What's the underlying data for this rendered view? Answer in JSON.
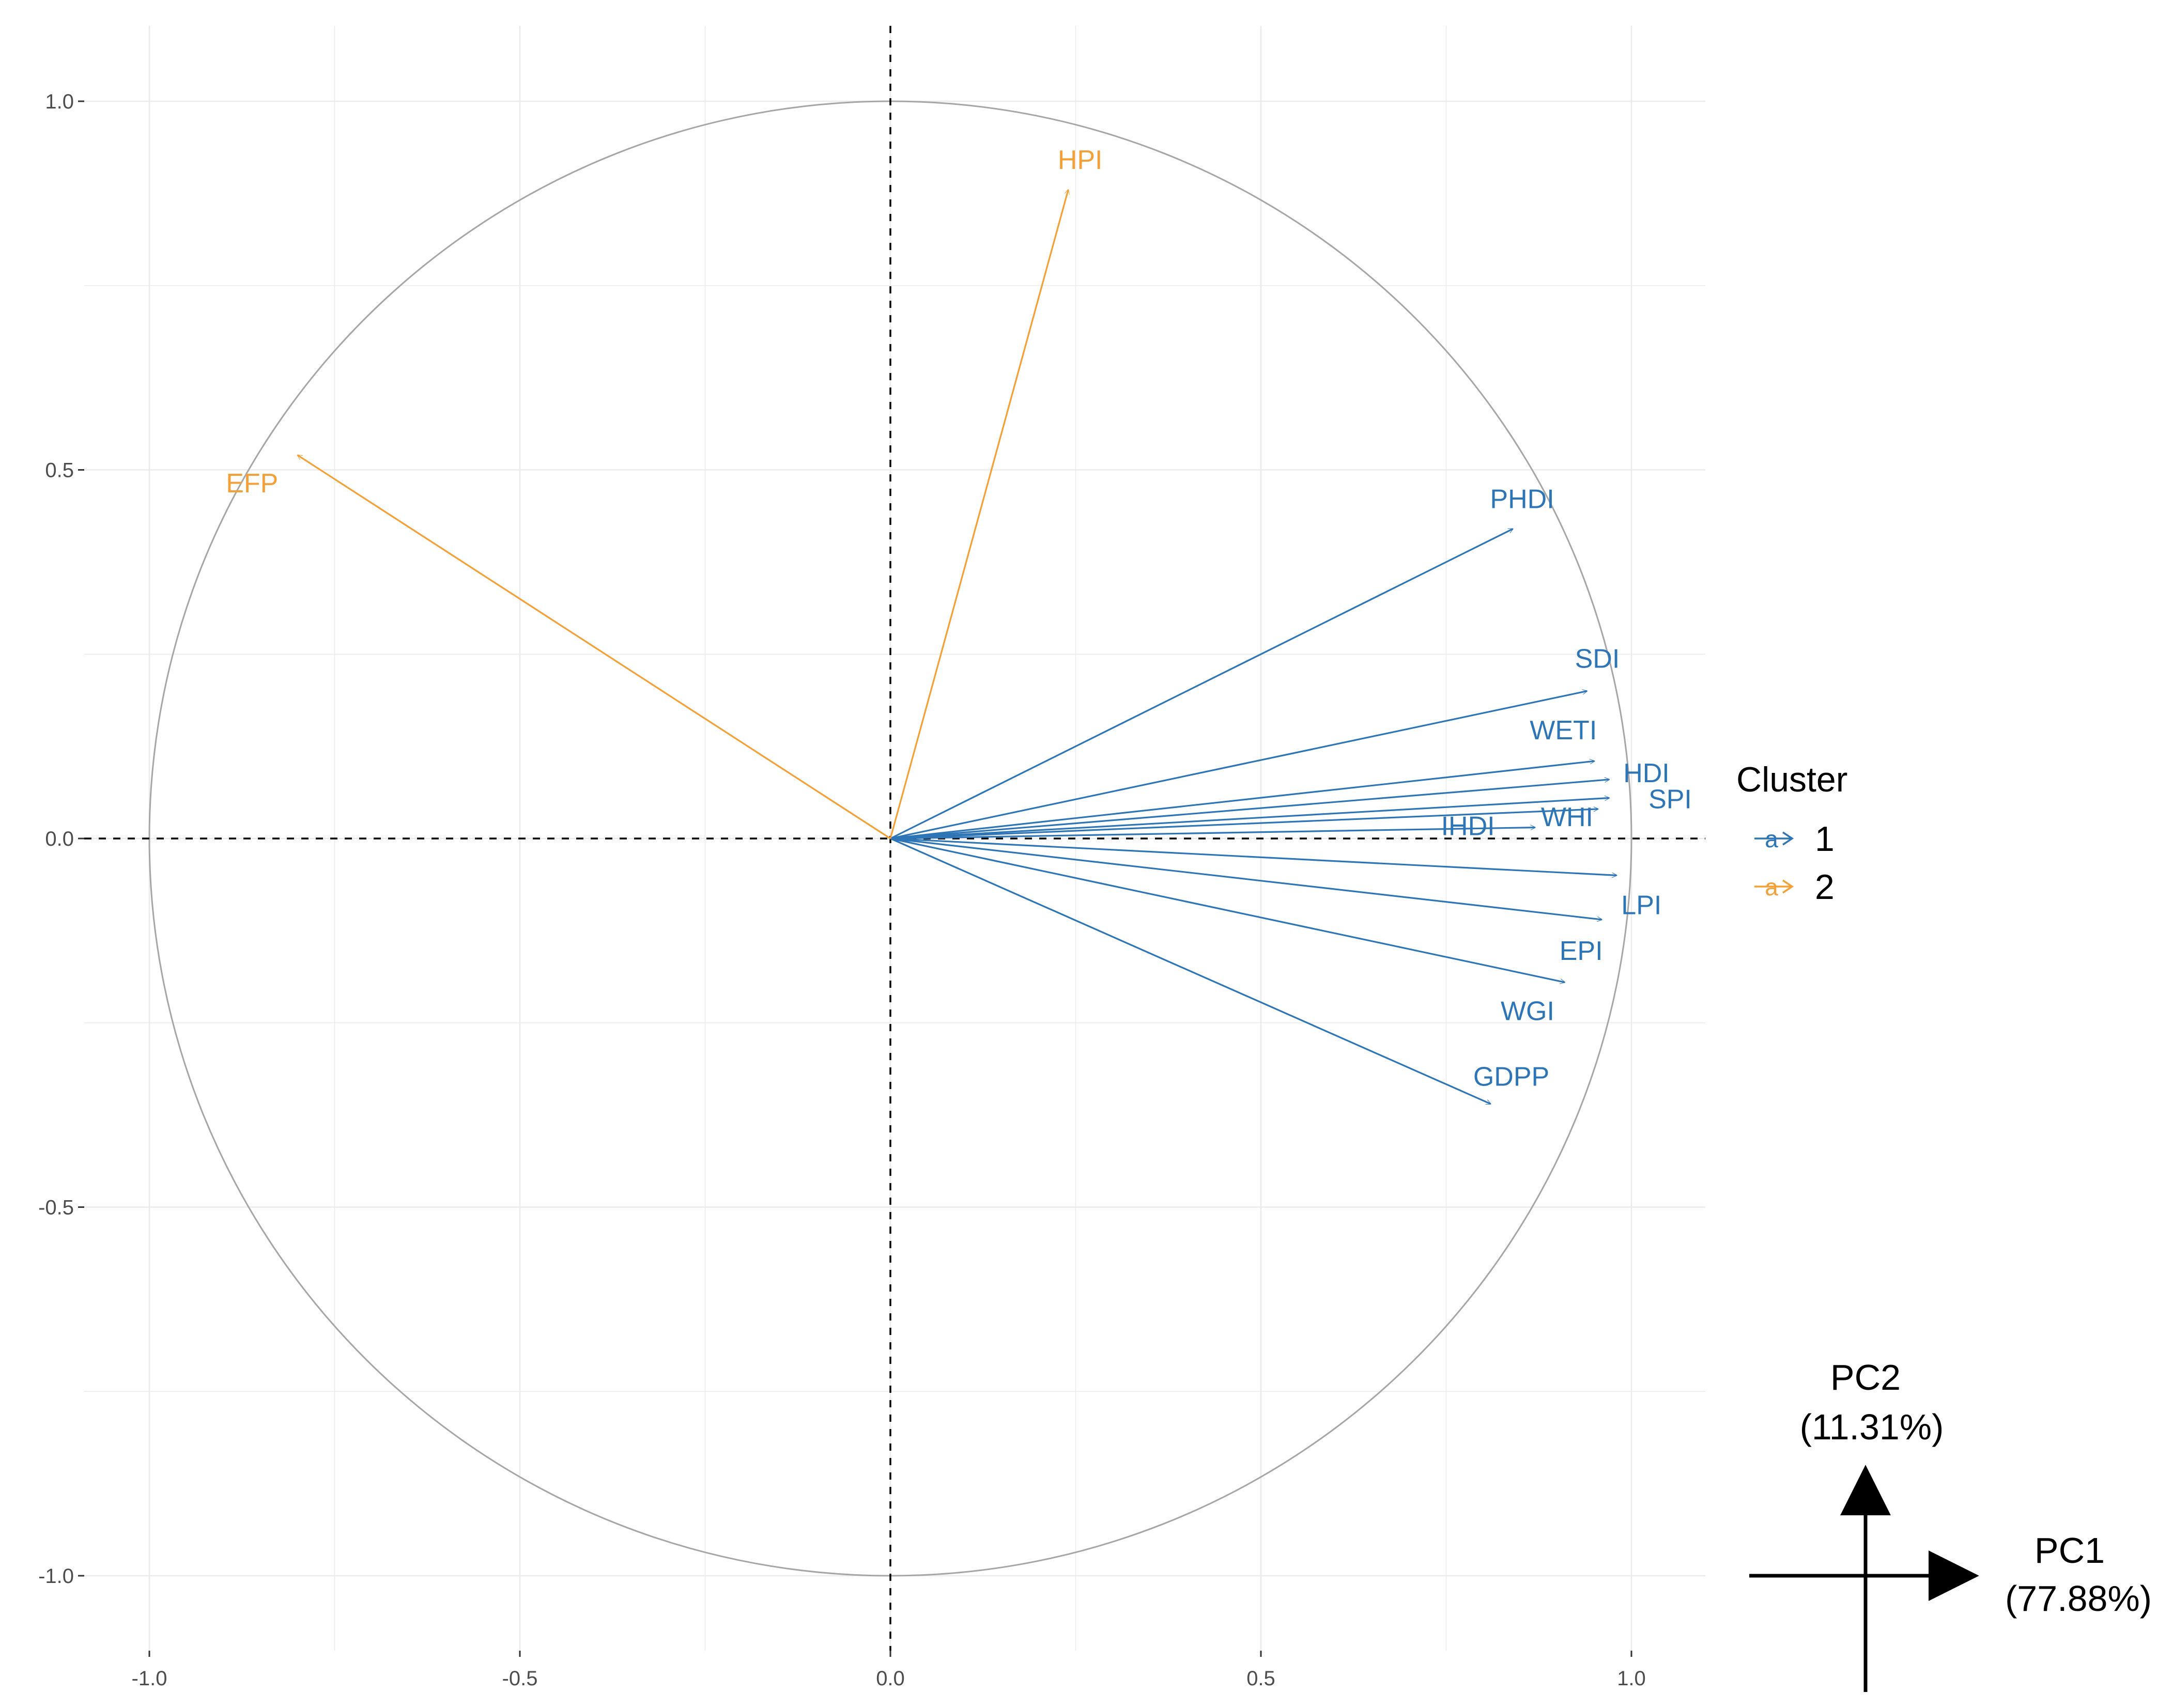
{
  "chart_data": {
    "type": "pca-correlation-circle",
    "xlim": [
      -1.0,
      1.0
    ],
    "ylim": [
      -1.0,
      1.0
    ],
    "x_ticks": [
      -1.0,
      -0.5,
      0.0,
      0.5,
      1.0
    ],
    "y_ticks": [
      -1.0,
      -0.5,
      0.0,
      0.5,
      1.0
    ],
    "x_tick_labels": [
      "-1.0",
      "-0.5",
      "0.0",
      "0.5",
      "1.0"
    ],
    "y_tick_labels": [
      "-1.0",
      "-0.5",
      "0.0",
      "0.5",
      "1.0"
    ],
    "grid": true,
    "circle_radius": 1.0,
    "legend": {
      "title": "Cluster",
      "glyph": "a",
      "entries": [
        {
          "label": "1",
          "color": "#2E75B6"
        },
        {
          "label": "2",
          "color": "#F4A038"
        }
      ]
    },
    "series": [
      {
        "name": "PHDI",
        "cluster": "1",
        "x": 0.84,
        "y": 0.42
      },
      {
        "name": "SDI",
        "cluster": "1",
        "x": 0.94,
        "y": 0.2
      },
      {
        "name": "WETI",
        "cluster": "1",
        "x": 0.95,
        "y": 0.105
      },
      {
        "name": "HDI",
        "cluster": "1",
        "x": 0.97,
        "y": 0.08
      },
      {
        "name": "SPI",
        "cluster": "1",
        "x": 0.97,
        "y": 0.055
      },
      {
        "name": "WHI",
        "cluster": "1",
        "x": 0.955,
        "y": 0.04
      },
      {
        "name": "IHDI",
        "cluster": "1",
        "x": 0.87,
        "y": 0.015
      },
      {
        "name": "LPI",
        "cluster": "1",
        "x": 0.98,
        "y": -0.05
      },
      {
        "name": "EPI",
        "cluster": "1",
        "x": 0.96,
        "y": -0.11
      },
      {
        "name": "WGI",
        "cluster": "1",
        "x": 0.91,
        "y": -0.195
      },
      {
        "name": "GDPP",
        "cluster": "1",
        "x": 0.81,
        "y": -0.36
      },
      {
        "name": "HPI",
        "cluster": "2",
        "x": 0.24,
        "y": 0.88
      },
      {
        "name": "EFP",
        "cluster": "2",
        "x": -0.8,
        "y": 0.52
      }
    ],
    "axes_key": {
      "x_axis": "PC1",
      "x_variance": "(77.88%)",
      "y_axis": "PC2",
      "y_variance": "(11.31%)"
    }
  }
}
